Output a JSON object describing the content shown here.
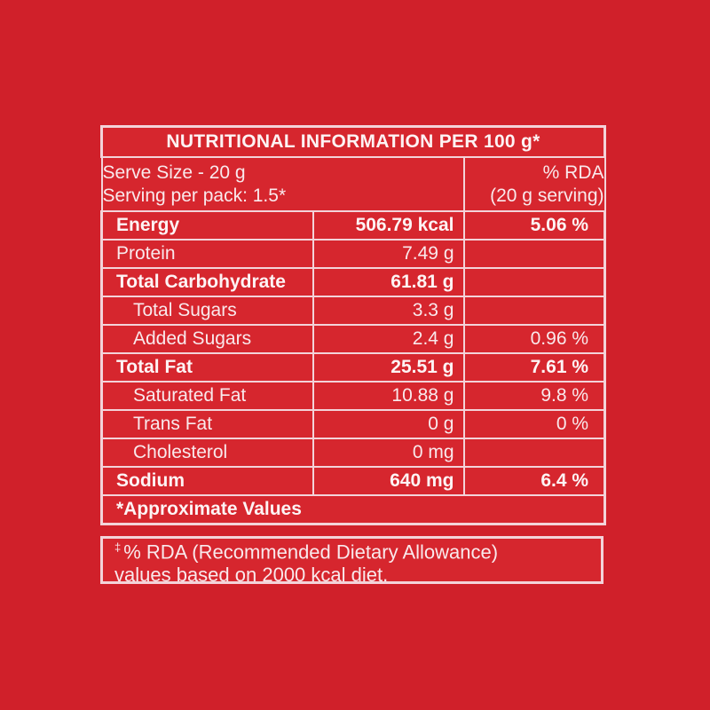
{
  "colors": {
    "page_background": "#D0202A",
    "cell_background": "#D6262E",
    "border": "#F3D3D9",
    "text": "#F9E9EC",
    "bold_text": "#FDF3F4"
  },
  "table": {
    "title": "NUTRITIONAL INFORMATION PER 100 g*",
    "header": {
      "serve_size": "Serve Size - 20 g",
      "serving_per_pack": "Serving per pack: 1.5*",
      "rda_line1": "% RDA",
      "rda_line2": "(20 g serving)"
    },
    "rows": [
      {
        "label": "Energy",
        "value": "506.79 kcal",
        "rda": "5.06 %",
        "bold": true,
        "indent": false
      },
      {
        "label": "Protein",
        "value": "7.49 g",
        "rda": "",
        "bold": false,
        "indent": false
      },
      {
        "label": "Total Carbohydrate",
        "value": "61.81 g",
        "rda": "",
        "bold": true,
        "indent": false
      },
      {
        "label": "Total Sugars",
        "value": "3.3 g",
        "rda": "",
        "bold": false,
        "indent": true
      },
      {
        "label": "Added Sugars",
        "value": "2.4 g",
        "rda": "0.96 %",
        "bold": false,
        "indent": true
      },
      {
        "label": "Total Fat",
        "value": "25.51 g",
        "rda": "7.61 %",
        "bold": true,
        "indent": false
      },
      {
        "label": "Saturated Fat",
        "value": "10.88 g",
        "rda": "9.8 %",
        "bold": false,
        "indent": true
      },
      {
        "label": "Trans Fat",
        "value": "0 g",
        "rda": "0 %",
        "bold": false,
        "indent": true
      },
      {
        "label": "Cholesterol",
        "value": "0 mg",
        "rda": "",
        "bold": false,
        "indent": true
      },
      {
        "label": "Sodium",
        "value": "640 mg",
        "rda": "6.4 %",
        "bold": true,
        "indent": false
      }
    ],
    "footer": "*Approximate Values"
  },
  "note": {
    "symbol": "‡",
    "line1": "% RDA (Recommended Dietary Allowance)",
    "line2": "values based on 2000 kcal diet."
  }
}
